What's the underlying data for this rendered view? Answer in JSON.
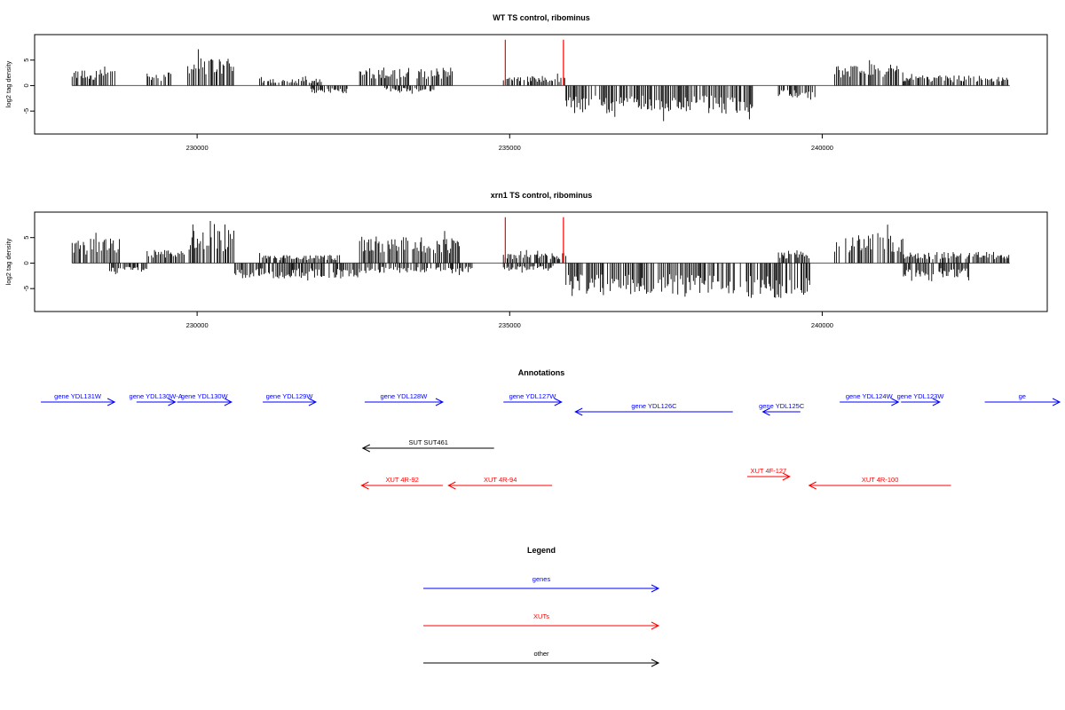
{
  "chart_data": [
    {
      "type": "bar",
      "title": "WT TS control, ribominus",
      "ylabel": "log2 tag density",
      "xlim": [
        227400,
        243600
      ],
      "ylim": [
        -9.5,
        10
      ],
      "xticks": [
        230000,
        235000,
        240000
      ],
      "xtick_labels": [
        "230000",
        "235000",
        "240000"
      ],
      "yticks": [
        -5,
        0,
        5
      ],
      "ytick_labels": [
        "-5",
        "0",
        "5"
      ],
      "red_markers": [
        {
          "x": 234930,
          "y": 9.0
        },
        {
          "x": 235860,
          "y": 9.0
        }
      ],
      "signal_segments": [
        {
          "start": 228000,
          "end": 228700,
          "y": 3.2,
          "sign": 1
        },
        {
          "start": 229200,
          "end": 229600,
          "y": 2.6,
          "sign": 1
        },
        {
          "start": 229850,
          "end": 230600,
          "y": 5.5,
          "sign": 1
        },
        {
          "start": 231000,
          "end": 232000,
          "y": 1.4,
          "sign": 1
        },
        {
          "start": 231800,
          "end": 232400,
          "y": 1.5,
          "sign": -1
        },
        {
          "start": 232600,
          "end": 234100,
          "y": 3.6,
          "sign": 1
        },
        {
          "start": 233000,
          "end": 233800,
          "y": 1.2,
          "sign": -1
        },
        {
          "start": 234900,
          "end": 235900,
          "y": 1.8,
          "sign": 1
        },
        {
          "start": 235900,
          "end": 238900,
          "y": 5.5,
          "sign": -1
        },
        {
          "start": 239300,
          "end": 239900,
          "y": 2.5,
          "sign": -1
        },
        {
          "start": 240200,
          "end": 241300,
          "y": 4.2,
          "sign": 1
        },
        {
          "start": 241300,
          "end": 243000,
          "y": 2.0,
          "sign": 1
        }
      ]
    },
    {
      "type": "bar",
      "title": "xrn1 TS control, ribominus",
      "ylabel": "log2 tag density",
      "xlim": [
        227400,
        243600
      ],
      "ylim": [
        -9.5,
        10
      ],
      "xticks": [
        230000,
        235000,
        240000
      ],
      "xtick_labels": [
        "230000",
        "235000",
        "240000"
      ],
      "yticks": [
        -5,
        0,
        5
      ],
      "ytick_labels": [
        "-5",
        "0",
        "5"
      ],
      "red_markers": [
        {
          "x": 234930,
          "y": 9.0
        },
        {
          "x": 235860,
          "y": 9.0
        }
      ],
      "signal_segments": [
        {
          "start": 228000,
          "end": 228800,
          "y": 4.8,
          "sign": 1
        },
        {
          "start": 228600,
          "end": 229200,
          "y": 1.8,
          "sign": -1
        },
        {
          "start": 229200,
          "end": 229800,
          "y": 2.6,
          "sign": 1
        },
        {
          "start": 229850,
          "end": 230600,
          "y": 6.5,
          "sign": 1
        },
        {
          "start": 230600,
          "end": 232600,
          "y": 3.0,
          "sign": -1
        },
        {
          "start": 231000,
          "end": 232300,
          "y": 1.6,
          "sign": 1
        },
        {
          "start": 232600,
          "end": 234200,
          "y": 5.3,
          "sign": 1
        },
        {
          "start": 232600,
          "end": 234400,
          "y": 2.0,
          "sign": -1
        },
        {
          "start": 234900,
          "end": 235900,
          "y": 2.0,
          "sign": 1
        },
        {
          "start": 234900,
          "end": 235700,
          "y": 1.5,
          "sign": -1
        },
        {
          "start": 235900,
          "end": 238800,
          "y": 6.2,
          "sign": -1
        },
        {
          "start": 238800,
          "end": 239800,
          "y": 7.0,
          "sign": -1
        },
        {
          "start": 239300,
          "end": 239800,
          "y": 2.5,
          "sign": 1
        },
        {
          "start": 240200,
          "end": 241300,
          "y": 6.0,
          "sign": 1
        },
        {
          "start": 241300,
          "end": 242400,
          "y": 2.8,
          "sign": -1
        },
        {
          "start": 241300,
          "end": 243000,
          "y": 2.2,
          "sign": 1
        }
      ]
    }
  ],
  "annotations": {
    "title": "Annotations",
    "features": [
      {
        "label": "gene YDL131W",
        "start": 227500,
        "end": 228680,
        "strand": "+",
        "kind": "gene",
        "row": 0
      },
      {
        "label": "gene YDL130W-A",
        "start": 229030,
        "end": 229650,
        "strand": "+",
        "kind": "gene",
        "row": 0
      },
      {
        "label": "gene YDL130W",
        "start": 229680,
        "end": 230550,
        "strand": "+",
        "kind": "gene",
        "row": 0
      },
      {
        "label": "gene YDL129W",
        "start": 231050,
        "end": 231900,
        "strand": "+",
        "kind": "gene",
        "row": 0
      },
      {
        "label": "gene YDL128W",
        "start": 232680,
        "end": 233930,
        "strand": "+",
        "kind": "gene",
        "row": 0
      },
      {
        "label": "gene YDL127W",
        "start": 234900,
        "end": 235830,
        "strand": "+",
        "kind": "gene",
        "row": 0
      },
      {
        "label": "gene YDL126C",
        "start": 236050,
        "end": 238570,
        "strand": "-",
        "kind": "gene",
        "row": 1
      },
      {
        "label": "gene YDL125C",
        "start": 239050,
        "end": 239650,
        "strand": "-",
        "kind": "gene",
        "row": 1
      },
      {
        "label": "gene YDL124W",
        "start": 240280,
        "end": 241220,
        "strand": "+",
        "kind": "gene",
        "row": 0
      },
      {
        "label": "gene YDL123W",
        "start": 241260,
        "end": 241880,
        "strand": "+",
        "kind": "gene",
        "row": 0
      },
      {
        "label": "ge",
        "start": 242600,
        "end": 243800,
        "strand": "+",
        "kind": "gene",
        "row": 0
      },
      {
        "label": "SUT SUT461",
        "start": 232650,
        "end": 234750,
        "strand": "-",
        "kind": "other",
        "row": 2
      },
      {
        "label": "XUT 4R-92",
        "start": 232630,
        "end": 233930,
        "strand": "-",
        "kind": "xut",
        "row": 3
      },
      {
        "label": "XUT 4R-94",
        "start": 234020,
        "end": 235680,
        "strand": "-",
        "kind": "xut",
        "row": 3
      },
      {
        "label": "XUT 4F-127",
        "start": 238800,
        "end": 239480,
        "strand": "+",
        "kind": "xut",
        "row": 4
      },
      {
        "label": "XUT 4R-100",
        "start": 239790,
        "end": 242060,
        "strand": "-",
        "kind": "xut",
        "row": 3
      }
    ]
  },
  "legend": {
    "title": "Legend",
    "items": [
      {
        "label": "genes",
        "color": "#0000ff"
      },
      {
        "label": "XUTs",
        "color": "#ff0000"
      },
      {
        "label": "other",
        "color": "#000000"
      }
    ]
  },
  "colors": {
    "gene": "#0000ff",
    "xut": "#ff0000",
    "other": "#000000",
    "signal": "#000000",
    "marker": "#ff0000"
  }
}
